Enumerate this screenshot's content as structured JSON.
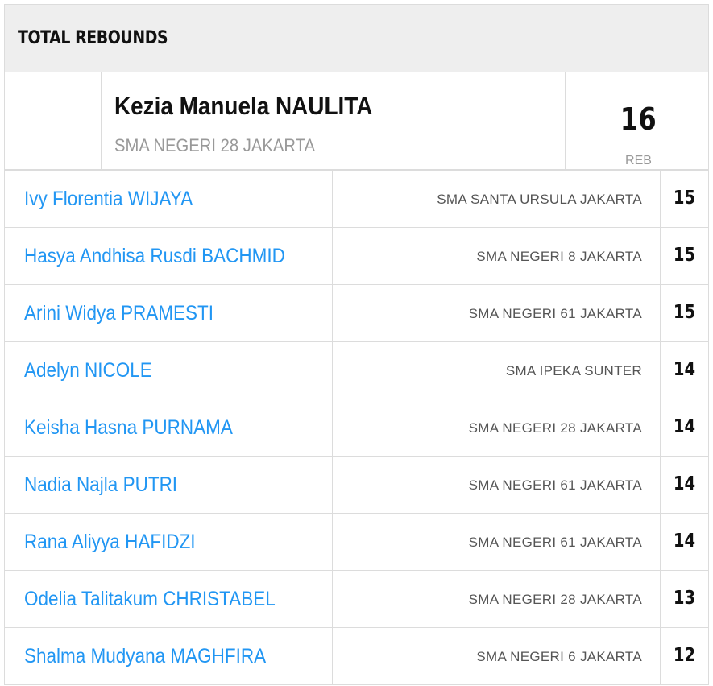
{
  "header": {
    "title": "TOTAL REBOUNDS"
  },
  "leader": {
    "name": "Kezia Manuela NAULITA",
    "team": "SMA NEGERI 28 JAKARTA",
    "value": "16",
    "unit": "REB"
  },
  "rows": [
    {
      "name": "Ivy Florentia WIJAYA",
      "team": "SMA SANTA URSULA JAKARTA",
      "value": "15"
    },
    {
      "name": "Hasya Andhisa Rusdi BACHMID",
      "team": "SMA NEGERI 8 JAKARTA",
      "value": "15"
    },
    {
      "name": "Arini Widya PRAMESTI",
      "team": "SMA NEGERI 61 JAKARTA",
      "value": "15"
    },
    {
      "name": "Adelyn NICOLE",
      "team": "SMA IPEKA SUNTER",
      "value": "14"
    },
    {
      "name": "Keisha Hasna PURNAMA",
      "team": "SMA NEGERI 28 JAKARTA",
      "value": "14"
    },
    {
      "name": "Nadia Najla PUTRI",
      "team": "SMA NEGERI 61 JAKARTA",
      "value": "14"
    },
    {
      "name": "Rana Aliyya HAFIDZI",
      "team": "SMA NEGERI 61 JAKARTA",
      "value": "14"
    },
    {
      "name": "Odelia Talitakum CHRISTABEL",
      "team": "SMA NEGERI 28 JAKARTA",
      "value": "13"
    },
    {
      "name": "Shalma Mudyana MAGHFIRA",
      "team": "SMA NEGERI 6 JAKARTA",
      "value": "12"
    }
  ],
  "colors": {
    "link": "#2196f3",
    "header_bg": "#eeeeee",
    "border": "#dcdcdc",
    "muted": "#999999"
  }
}
